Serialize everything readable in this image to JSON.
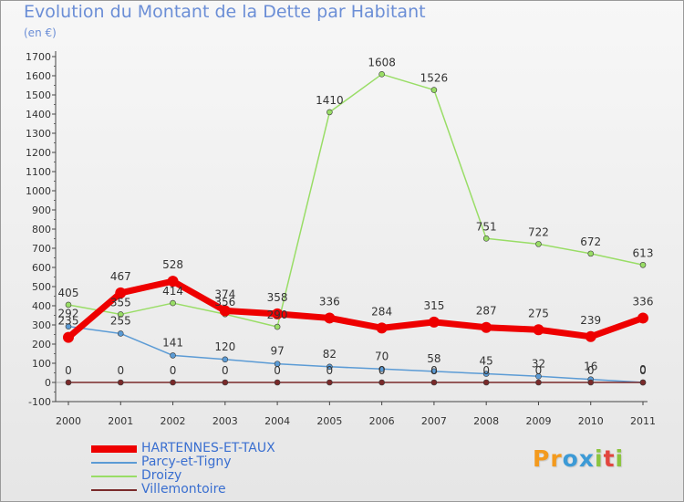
{
  "brand": {
    "letters": [
      "P",
      "r",
      "o",
      "x",
      "i",
      "t",
      "i"
    ],
    "colors": [
      "#f39a1e",
      "#f39a1e",
      "#3c9ad6",
      "#3c9ad6",
      "#8cc43f",
      "#e2463f",
      "#8cc43f"
    ]
  },
  "chart_data": {
    "type": "line",
    "title": "Evolution du Montant de la Dette par Habitant",
    "subtitle": "(en €)",
    "xlabel": "",
    "ylabel": "",
    "categories": [
      "2000",
      "2001",
      "2002",
      "2003",
      "2004",
      "2005",
      "2006",
      "2007",
      "2008",
      "2009",
      "2010",
      "2011"
    ],
    "ylim": [
      -100,
      1700
    ],
    "yticks": [
      -100,
      0,
      100,
      200,
      300,
      400,
      500,
      600,
      700,
      800,
      900,
      1000,
      1100,
      1200,
      1300,
      1400,
      1500,
      1600,
      1700
    ],
    "grid": false,
    "legend_position": "bottom-left",
    "series": [
      {
        "name": "HARTENNES-ET-TAUX",
        "color": "#ee0000",
        "values": [
          235,
          467,
          528,
          374,
          358,
          336,
          284,
          315,
          287,
          275,
          239,
          336
        ],
        "labels": [
          "235",
          "467",
          "528",
          "374",
          "358",
          "336",
          "284",
          "315",
          "287",
          "275",
          "239",
          "336"
        ]
      },
      {
        "name": "Parcy-et-Tigny",
        "color": "#5b9bd5",
        "values": [
          292,
          255,
          141,
          120,
          97,
          82,
          70,
          58,
          45,
          32,
          16,
          0
        ],
        "labels": [
          "292",
          "255",
          "141",
          "120",
          "97",
          "82",
          "70",
          "58",
          "45",
          "32",
          "16",
          "0"
        ]
      },
      {
        "name": "Droizy",
        "color": "#99dd66",
        "values": [
          405,
          355,
          414,
          356,
          290,
          1410,
          1608,
          1526,
          751,
          722,
          672,
          613
        ],
        "labels": [
          "405",
          "355",
          "414",
          "356",
          "290",
          "1410",
          "1608",
          "1526",
          "751",
          "722",
          "672",
          "613"
        ]
      },
      {
        "name": "Villemontoire",
        "color": "#7a2a2a",
        "values": [
          0,
          0,
          0,
          0,
          0,
          0,
          0,
          0,
          0,
          0,
          0,
          0
        ],
        "labels": [
          "0",
          "0",
          "0",
          "0",
          "0",
          "0",
          "0",
          "0",
          "0",
          "0",
          "0",
          "0"
        ]
      }
    ]
  }
}
